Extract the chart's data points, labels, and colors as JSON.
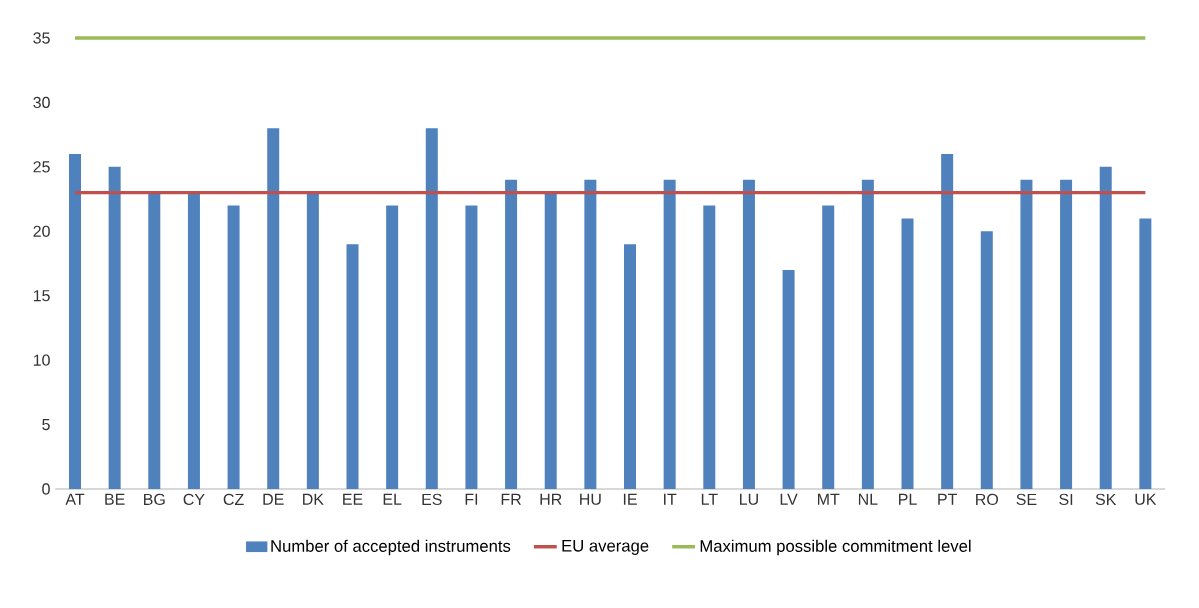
{
  "chart_data": {
    "type": "bar",
    "categories": [
      "AT",
      "BE",
      "BG",
      "CY",
      "CZ",
      "DE",
      "DK",
      "EE",
      "EL",
      "ES",
      "FI",
      "FR",
      "HR",
      "HU",
      "IE",
      "IT",
      "LT",
      "LU",
      "LV",
      "MT",
      "NL",
      "PL",
      "PT",
      "RO",
      "SE",
      "SI",
      "SK",
      "UK"
    ],
    "series": [
      {
        "name": "Number of accepted instruments",
        "color": "#4f81bd",
        "values": [
          26,
          25,
          23,
          23,
          22,
          28,
          23,
          19,
          22,
          28,
          22,
          24,
          23,
          24,
          19,
          24,
          22,
          24,
          17,
          22,
          24,
          21,
          26,
          20,
          24,
          24,
          25,
          21
        ]
      },
      {
        "name": "EU average",
        "type": "line",
        "color": "#c0504d",
        "values": [
          23,
          23,
          23,
          23,
          23,
          23,
          23,
          23,
          23,
          23,
          23,
          23,
          23,
          23,
          23,
          23,
          23,
          23,
          23,
          23,
          23,
          23,
          23,
          23,
          23,
          23,
          23,
          23
        ]
      },
      {
        "name": "Maximum possible commitment level",
        "type": "line",
        "color": "#9bbb59",
        "values": [
          35,
          35,
          35,
          35,
          35,
          35,
          35,
          35,
          35,
          35,
          35,
          35,
          35,
          35,
          35,
          35,
          35,
          35,
          35,
          35,
          35,
          35,
          35,
          35,
          35,
          35,
          35,
          35
        ]
      }
    ],
    "ylim": [
      0,
      35
    ],
    "yticks": [
      0,
      5,
      10,
      15,
      20,
      25,
      30,
      35
    ],
    "grid": false,
    "legend": "bottom"
  }
}
